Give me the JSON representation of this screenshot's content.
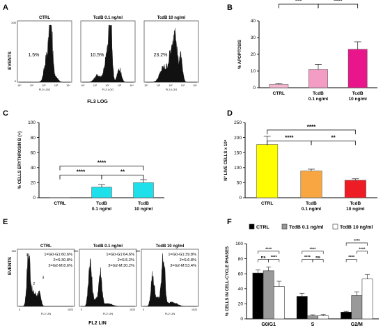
{
  "panels": {
    "A": {
      "letter": "A",
      "hists": [
        {
          "title": "CTRL",
          "pct": "1.5%"
        },
        {
          "title": "TcdB 0.1 ng/ml",
          "pct": "10.5%"
        },
        {
          "title": "TcdB 10 ng/ml",
          "pct": "23.2%"
        }
      ],
      "y_axis_label": "EVENTS",
      "x_small_label": "FL3 LOG",
      "x_axis_label": "FL3 LOG",
      "ymax_tick": "200",
      "ymin_tick": "0",
      "x_ticks": [
        "10⁰",
        "10¹",
        "10²",
        "10³",
        "10⁴"
      ]
    },
    "E": {
      "letter": "E",
      "hists": [
        {
          "title": "CTRL",
          "lines": [
            "1=G0-G1:60.6%",
            "2=S:30.8%",
            "3=G2-M:8.6%"
          ],
          "peaks": [
            "1",
            "2",
            "3"
          ]
        },
        {
          "title": "TcdB 0.1 ng/ml",
          "lines": [
            "1=G0-G1:64.6%",
            "2=S:5.2%",
            "3=G2-M:30.2%"
          ],
          "peaks": []
        },
        {
          "title": "TcdB 10 ng/ml",
          "lines": [
            "1=G0-G1:39.8%",
            "2=S:6.8%",
            "3=G2-M:53.4%"
          ],
          "peaks": []
        }
      ],
      "y_axis_label": "EVENTS",
      "x_small_label": "FL2 LIN",
      "x_axis_label": "FL2 LIN",
      "ymax_ticks": [
        "150",
        "150",
        "180"
      ],
      "x_ticks": [
        "0",
        "1023"
      ]
    }
  },
  "chart_data": [
    {
      "id": "B",
      "letter": "B",
      "type": "bar",
      "ylabel": "% APOPTOSIS",
      "ylim": [
        0,
        40
      ],
      "yticks": [
        0,
        10,
        20,
        30,
        40
      ],
      "categories": [
        [
          "CTRL"
        ],
        [
          "TcdB",
          "0.1 ng/ml"
        ],
        [
          "TcdB",
          "10 ng/ml"
        ]
      ],
      "values": [
        2,
        11,
        23
      ],
      "errors": [
        0.7,
        3,
        4.5
      ],
      "colors": [
        "#f7b8cf",
        "#f39cc4",
        "#e8168a"
      ],
      "significance": [
        {
          "from": 0,
          "to": 1,
          "level": 50,
          "label": "***"
        },
        {
          "from": 1,
          "to": 2,
          "level": 50,
          "label": "****"
        },
        {
          "from": 0,
          "to": 2,
          "level": 64,
          "label": "****"
        }
      ]
    },
    {
      "id": "C",
      "letter": "C",
      "type": "bar",
      "ylabel": "% CELLS ERYTHROSIN B (+)",
      "ylim": [
        0,
        100
      ],
      "yticks": [
        0,
        20,
        40,
        60,
        80,
        100
      ],
      "categories": [
        [
          "CTRL"
        ],
        [
          "TcdB",
          "0.1 ng/ml"
        ],
        [
          "TcdB",
          "10 ng/ml"
        ]
      ],
      "values": [
        0.3,
        14,
        20
      ],
      "errors": [
        0,
        3.5,
        4
      ],
      "colors": [
        "#1ee0ea",
        "#1ee0ea",
        "#1ee0ea"
      ],
      "significance": [
        {
          "from": 0,
          "to": 1,
          "level": 30,
          "label": "****"
        },
        {
          "from": 1,
          "to": 2,
          "level": 30,
          "label": "**"
        },
        {
          "from": 0,
          "to": 2,
          "level": 42,
          "label": "****"
        }
      ]
    },
    {
      "id": "D",
      "letter": "D",
      "type": "bar",
      "ylabel": "N° LIVE CELLS x 10⁴",
      "ylim": [
        0,
        250
      ],
      "yticks": [
        0,
        50,
        100,
        150,
        200,
        250
      ],
      "categories": [
        [
          "CTRL"
        ],
        [
          "TcdB",
          "0.1 ng/ml"
        ],
        [
          "TcdB",
          "10 ng/ml"
        ]
      ],
      "values": [
        177,
        89,
        58
      ],
      "errors": [
        28,
        6,
        5
      ],
      "colors": [
        "#ffff00",
        "#f7a641",
        "#ee1c25"
      ],
      "significance": [
        {
          "from": 0,
          "to": 1,
          "level": 189,
          "label": "****"
        },
        {
          "from": 1,
          "to": 2,
          "level": 189,
          "label": "**"
        },
        {
          "from": 0,
          "to": 2,
          "level": 225,
          "label": "****"
        }
      ]
    },
    {
      "id": "F",
      "letter": "F",
      "type": "bar",
      "ylabel": "% CELLS IN CELL-CYCLE PHASES",
      "ylim": [
        0,
        100
      ],
      "yticks": [
        0,
        20,
        40,
        60,
        80,
        100
      ],
      "categories": [
        "G0/G1",
        "S",
        "G2/M"
      ],
      "series": [
        {
          "name": "CTRL",
          "color": "#000000",
          "values": [
            61,
            30,
            9
          ],
          "errors": [
            4,
            4,
            1
          ]
        },
        {
          "name": "TcdB 0.1 ng/ml",
          "color": "#999999",
          "values": [
            64,
            4,
            31
          ],
          "errors": [
            5,
            1.5,
            5
          ]
        },
        {
          "name": "TcdB 10 ng/ml",
          "color": "#ffffff",
          "values": [
            43,
            4,
            53
          ],
          "errors": [
            7,
            2,
            6
          ]
        }
      ],
      "legend_position": "top",
      "significance": [
        {
          "group": 0,
          "from": 0,
          "to": 1,
          "level": 79,
          "label": "ns"
        },
        {
          "group": 0,
          "from": 1,
          "to": 2,
          "level": 79,
          "label": "****"
        },
        {
          "group": 0,
          "from": 0,
          "to": 2,
          "level": 90,
          "label": "****"
        },
        {
          "group": 1,
          "from": 0,
          "to": 1,
          "level": 79,
          "label": "****"
        },
        {
          "group": 1,
          "from": 1,
          "to": 2,
          "level": 79,
          "label": "ns"
        },
        {
          "group": 1,
          "from": 0,
          "to": 2,
          "level": 90,
          "label": "****"
        },
        {
          "group": 2,
          "from": 0,
          "to": 1,
          "level": 79,
          "label": "****"
        },
        {
          "group": 2,
          "from": 1,
          "to": 2,
          "level": 90,
          "label": "****"
        },
        {
          "group": 2,
          "from": 0,
          "to": 2,
          "level": 101,
          "label": "****"
        }
      ]
    }
  ]
}
